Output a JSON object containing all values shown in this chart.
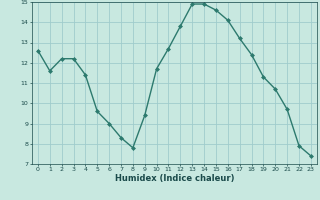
{
  "x": [
    0,
    1,
    2,
    3,
    4,
    5,
    6,
    7,
    8,
    9,
    10,
    11,
    12,
    13,
    14,
    15,
    16,
    17,
    18,
    19,
    20,
    21,
    22,
    23
  ],
  "y": [
    12.6,
    11.6,
    12.2,
    12.2,
    11.4,
    9.6,
    9.0,
    8.3,
    7.8,
    9.4,
    11.7,
    12.7,
    13.8,
    14.9,
    14.9,
    14.6,
    14.1,
    13.2,
    12.4,
    11.3,
    10.7,
    9.7,
    7.9,
    7.4
  ],
  "xlabel": "Humidex (Indice chaleur)",
  "ylabel": "",
  "xlim": [
    -0.5,
    23.5
  ],
  "ylim": [
    7,
    15
  ],
  "yticks": [
    7,
    8,
    9,
    10,
    11,
    12,
    13,
    14,
    15
  ],
  "xticks": [
    0,
    1,
    2,
    3,
    4,
    5,
    6,
    7,
    8,
    9,
    10,
    11,
    12,
    13,
    14,
    15,
    16,
    17,
    18,
    19,
    20,
    21,
    22,
    23
  ],
  "line_color": "#2d7a6e",
  "marker_color": "#2d7a6e",
  "bg_color": "#c8e8e0",
  "grid_color": "#a0cccc",
  "label_color": "#1a4a4a",
  "tick_color": "#1a4a4a"
}
